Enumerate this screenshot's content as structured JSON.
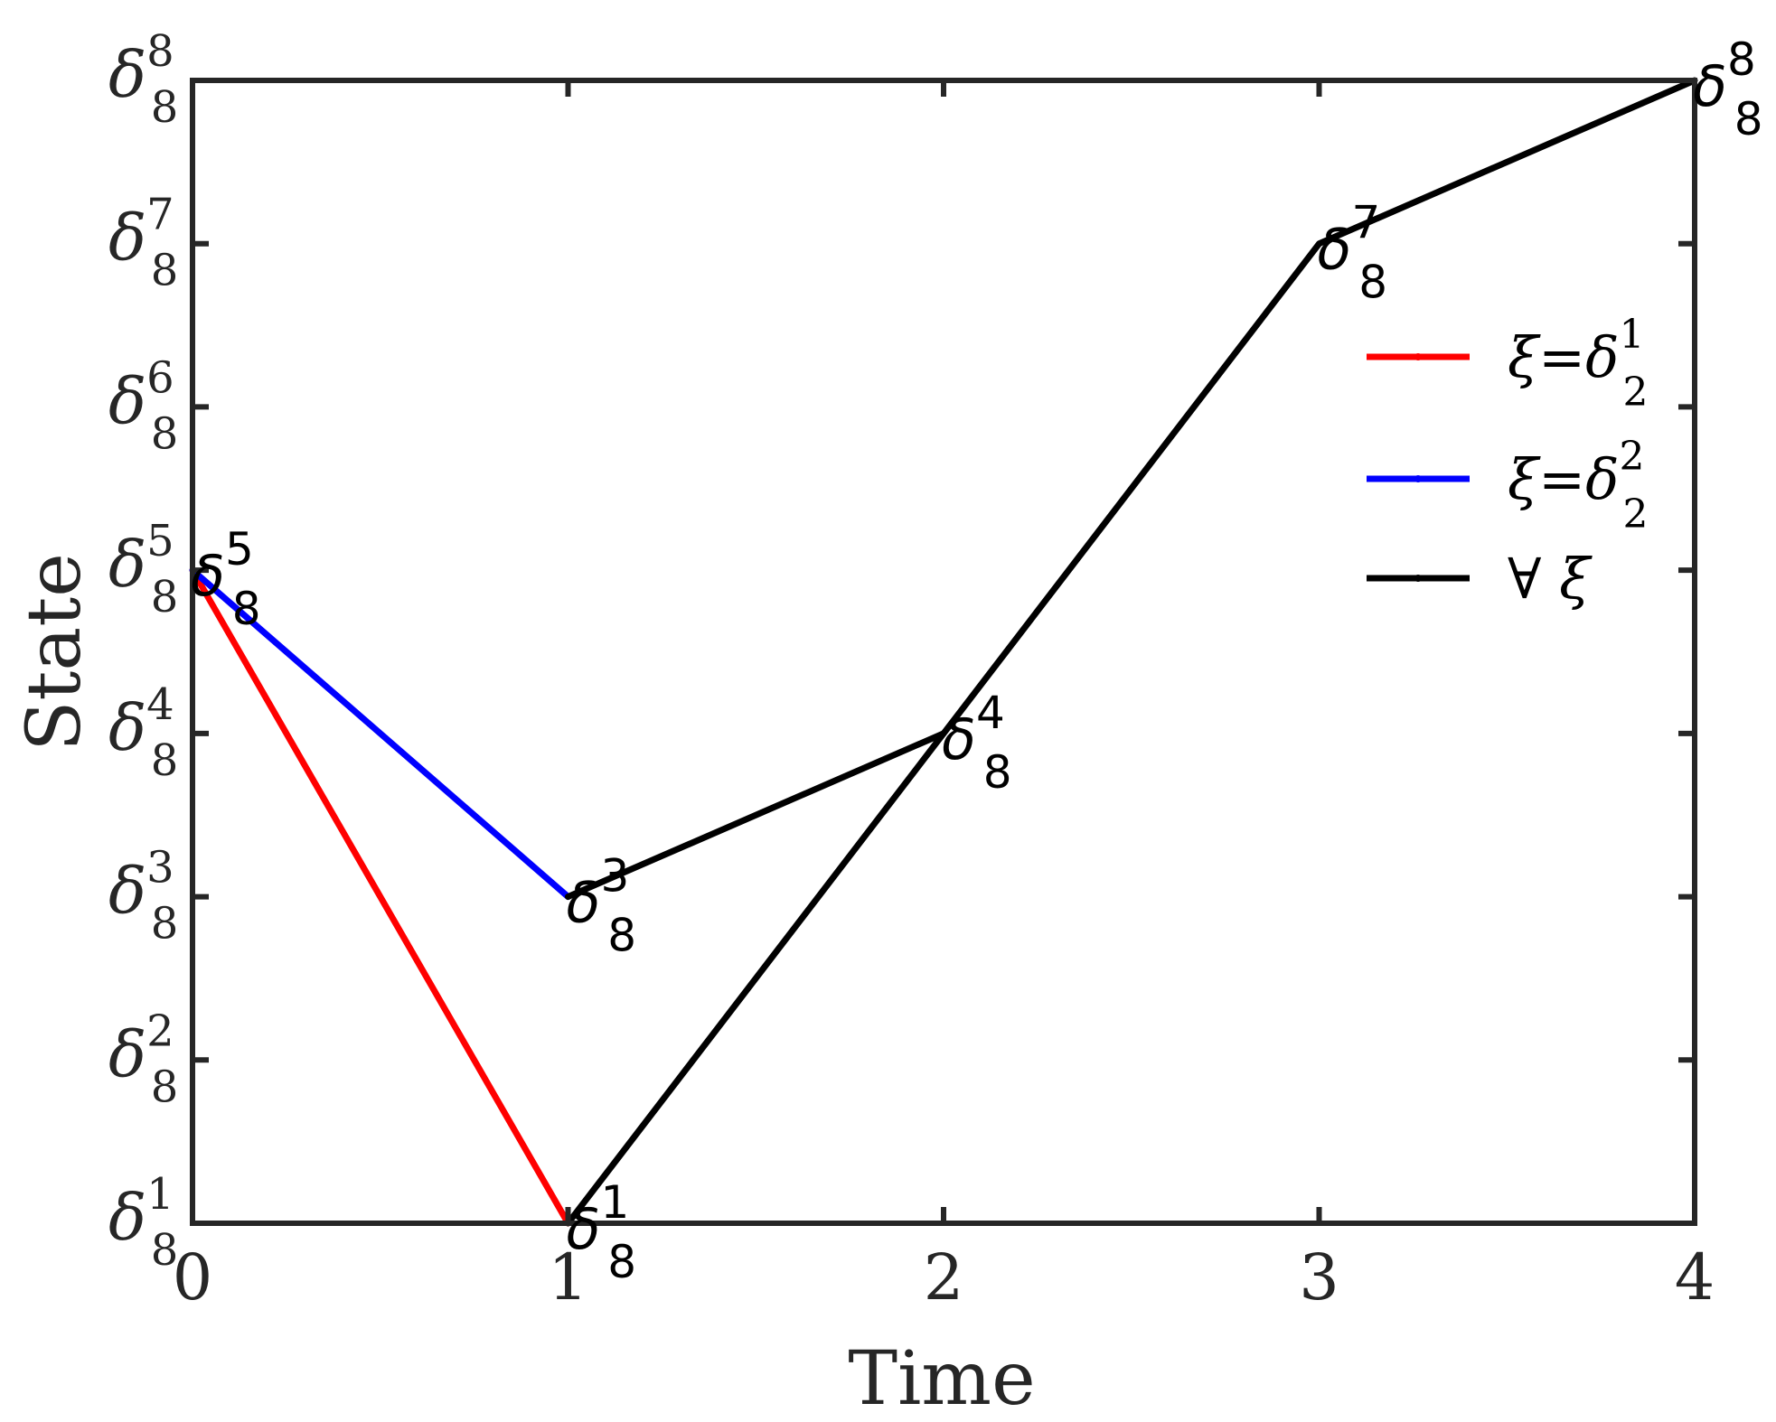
{
  "chart_data": {
    "type": "line",
    "xlabel": "Time",
    "ylabel": "State",
    "xlim": [
      0,
      4
    ],
    "ylim": [
      1,
      8
    ],
    "x_ticks": [
      {
        "value": 0,
        "label": "0"
      },
      {
        "value": 1,
        "label": "1"
      },
      {
        "value": 2,
        "label": "2"
      },
      {
        "value": 3,
        "label": "3"
      },
      {
        "value": 4,
        "label": "4"
      }
    ],
    "y_ticks": [
      {
        "value": 1,
        "sup": "1",
        "sub": "8"
      },
      {
        "value": 2,
        "sup": "2",
        "sub": "8"
      },
      {
        "value": 3,
        "sup": "3",
        "sub": "8"
      },
      {
        "value": 4,
        "sup": "4",
        "sub": "8"
      },
      {
        "value": 5,
        "sup": "5",
        "sub": "8"
      },
      {
        "value": 6,
        "sup": "6",
        "sub": "8"
      },
      {
        "value": 7,
        "sup": "7",
        "sub": "8"
      },
      {
        "value": 8,
        "sup": "8",
        "sub": "8"
      }
    ],
    "y_symbol": "δ",
    "series": [
      {
        "name": "ξ=δ",
        "name_sup": "1",
        "name_sub": "2",
        "color": "#ff0000",
        "x": [
          0,
          1
        ],
        "y": [
          5,
          1
        ]
      },
      {
        "name": "ξ=δ",
        "name_sup": "2",
        "name_sub": "2",
        "color": "#0000ff",
        "x": [
          0,
          1
        ],
        "y": [
          5,
          3
        ]
      },
      {
        "name": "∀ ξ",
        "name_sup": "",
        "name_sub": "",
        "color": "#000000",
        "x": [
          1,
          2,
          3,
          4
        ],
        "y": [
          1,
          4,
          7,
          8
        ]
      }
    ],
    "extra_segments": [
      {
        "color": "#000000",
        "x": [
          1,
          2
        ],
        "y": [
          3,
          4
        ]
      }
    ],
    "annotations": [
      {
        "x": 0,
        "y": 5,
        "symbol": "δ",
        "sup": "5",
        "sub": "8"
      },
      {
        "x": 1,
        "y": 1,
        "symbol": "δ",
        "sup": "1",
        "sub": "8"
      },
      {
        "x": 1,
        "y": 3,
        "symbol": "δ",
        "sup": "3",
        "sub": "8"
      },
      {
        "x": 2,
        "y": 4,
        "symbol": "δ",
        "sup": "4",
        "sub": "8"
      },
      {
        "x": 3,
        "y": 7,
        "symbol": "δ",
        "sup": "7",
        "sub": "8"
      },
      {
        "x": 4,
        "y": 8,
        "symbol": "δ",
        "sup": "8",
        "sub": "8"
      }
    ],
    "legend_position": "top-right",
    "grid": false
  }
}
